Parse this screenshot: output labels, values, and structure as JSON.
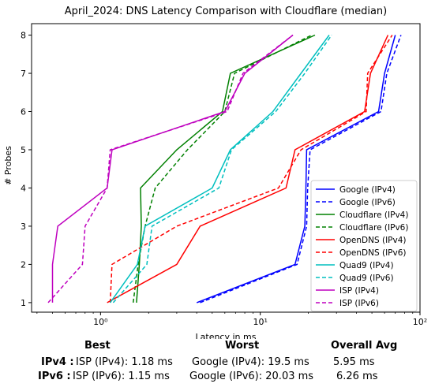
{
  "chart_data": {
    "type": "line",
    "title": "April_2024: DNS Latency Comparison with Cloudflare (median)",
    "xlabel": "Latency in ms",
    "ylabel": "# Probes",
    "xscale": "log",
    "xlim": [
      0.37,
      100
    ],
    "ylim": [
      0.75,
      8.3
    ],
    "x_ticks": [
      1,
      10,
      100
    ],
    "x_tick_labels": [
      "10⁰",
      "10¹",
      "10²"
    ],
    "y_ticks": [
      1,
      2,
      3,
      4,
      5,
      6,
      7,
      8
    ],
    "grid": false,
    "legend_position": "lower-right",
    "series": [
      {
        "name": "Google (IPv4)",
        "color": "#0000ff",
        "dash": "solid",
        "points": [
          [
            4.0,
            1
          ],
          [
            16.5,
            2
          ],
          [
            19.0,
            3
          ],
          [
            19.3,
            4
          ],
          [
            19.5,
            5
          ],
          [
            55.0,
            6
          ],
          [
            60.0,
            7
          ],
          [
            70.0,
            8
          ]
        ]
      },
      {
        "name": "Google (IPv6)",
        "color": "#0000ff",
        "dash": "dashed",
        "points": [
          [
            4.2,
            1
          ],
          [
            17.0,
            2
          ],
          [
            19.5,
            3
          ],
          [
            19.8,
            4
          ],
          [
            20.5,
            5
          ],
          [
            57.0,
            6
          ],
          [
            62.0,
            7
          ],
          [
            76.0,
            8
          ]
        ]
      },
      {
        "name": "Cloudflare (IPv4)",
        "color": "#008000",
        "dash": "solid",
        "points": [
          [
            1.68,
            1
          ],
          [
            1.75,
            2
          ],
          [
            1.8,
            3
          ],
          [
            1.78,
            4
          ],
          [
            3.0,
            5
          ],
          [
            5.8,
            6
          ],
          [
            6.5,
            7
          ],
          [
            22.0,
            8
          ]
        ]
      },
      {
        "name": "Cloudflare (IPv6)",
        "color": "#008000",
        "dash": "dashed",
        "points": [
          [
            1.6,
            1
          ],
          [
            1.72,
            2
          ],
          [
            1.9,
            3
          ],
          [
            2.2,
            4
          ],
          [
            3.5,
            5
          ],
          [
            6.0,
            6
          ],
          [
            6.9,
            7
          ],
          [
            21.0,
            8
          ]
        ]
      },
      {
        "name": "OpenDNS (IPv4)",
        "color": "#ff0000",
        "dash": "solid",
        "points": [
          [
            1.1,
            1
          ],
          [
            3.0,
            2
          ],
          [
            4.2,
            3
          ],
          [
            14.5,
            4
          ],
          [
            16.5,
            5
          ],
          [
            45.0,
            6
          ],
          [
            49.0,
            7
          ],
          [
            63.0,
            8
          ]
        ]
      },
      {
        "name": "OpenDNS (IPv6)",
        "color": "#ff0000",
        "dash": "dashed",
        "points": [
          [
            1.15,
            1
          ],
          [
            1.18,
            2
          ],
          [
            3.0,
            3
          ],
          [
            13.0,
            4
          ],
          [
            18.0,
            5
          ],
          [
            46.0,
            6
          ],
          [
            47.0,
            7
          ],
          [
            67.0,
            8
          ]
        ]
      },
      {
        "name": "Quad9 (IPv4)",
        "color": "#00bfbf",
        "dash": "solid",
        "points": [
          [
            1.15,
            1
          ],
          [
            1.7,
            2
          ],
          [
            1.9,
            3
          ],
          [
            5.0,
            4
          ],
          [
            6.5,
            5
          ],
          [
            12.0,
            6
          ],
          [
            18.0,
            7
          ],
          [
            27.0,
            8
          ]
        ]
      },
      {
        "name": "Quad9 (IPv6)",
        "color": "#00bfbf",
        "dash": "dashed",
        "points": [
          [
            1.2,
            1
          ],
          [
            1.95,
            2
          ],
          [
            2.1,
            3
          ],
          [
            5.5,
            4
          ],
          [
            6.6,
            5
          ],
          [
            12.5,
            6
          ],
          [
            19.0,
            7
          ],
          [
            28.0,
            8
          ]
        ]
      },
      {
        "name": "ISP (IPv4)",
        "color": "#bf00bf",
        "dash": "solid",
        "points": [
          [
            0.5,
            1
          ],
          [
            0.5,
            2
          ],
          [
            0.54,
            3
          ],
          [
            1.1,
            4
          ],
          [
            1.18,
            5
          ],
          [
            6.0,
            6
          ],
          [
            8.0,
            7
          ],
          [
            16.0,
            8
          ]
        ]
      },
      {
        "name": "ISP (IPv6)",
        "color": "#bf00bf",
        "dash": "dashed",
        "points": [
          [
            0.47,
            1
          ],
          [
            0.77,
            2
          ],
          [
            0.8,
            3
          ],
          [
            1.1,
            4
          ],
          [
            1.15,
            5
          ],
          [
            6.2,
            6
          ],
          [
            7.8,
            7
          ],
          [
            16.0,
            8
          ]
        ]
      }
    ]
  },
  "stats": {
    "headers": {
      "best": "Best",
      "worst": "Worst",
      "overall": "Overall Avg"
    },
    "rows": [
      {
        "label": "IPv4 :",
        "best": "ISP (IPv4): 1.18 ms",
        "worst": "Google (IPv4): 19.5 ms",
        "avg": "5.95 ms"
      },
      {
        "label": "IPv6 :",
        "best": "ISP (IPv6): 1.15 ms",
        "worst": "Google (IPv6): 20.03 ms",
        "avg": "6.26 ms"
      }
    ]
  }
}
